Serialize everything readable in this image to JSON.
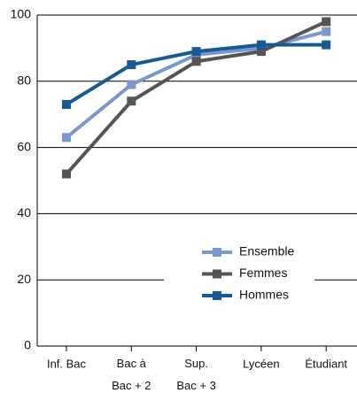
{
  "chart_data": {
    "type": "line",
    "categories": [
      "Inf. Bac",
      "Bac à\nBac + 2",
      "Sup.\nBac + 3",
      "Lycéen",
      "Étudiant"
    ],
    "series": [
      {
        "name": "Ensemble",
        "color": "#7b98cc",
        "values": [
          63,
          79,
          88,
          90,
          95
        ]
      },
      {
        "name": "Femmes",
        "color": "#555555",
        "values": [
          52,
          74,
          86,
          89,
          98
        ]
      },
      {
        "name": "Hommes",
        "color": "#175a96",
        "values": [
          73,
          85,
          89,
          91,
          91
        ]
      }
    ],
    "ylim": [
      0,
      100
    ],
    "yticks": [
      0,
      20,
      40,
      60,
      80,
      100
    ],
    "grid": true,
    "legend": "lower right"
  }
}
